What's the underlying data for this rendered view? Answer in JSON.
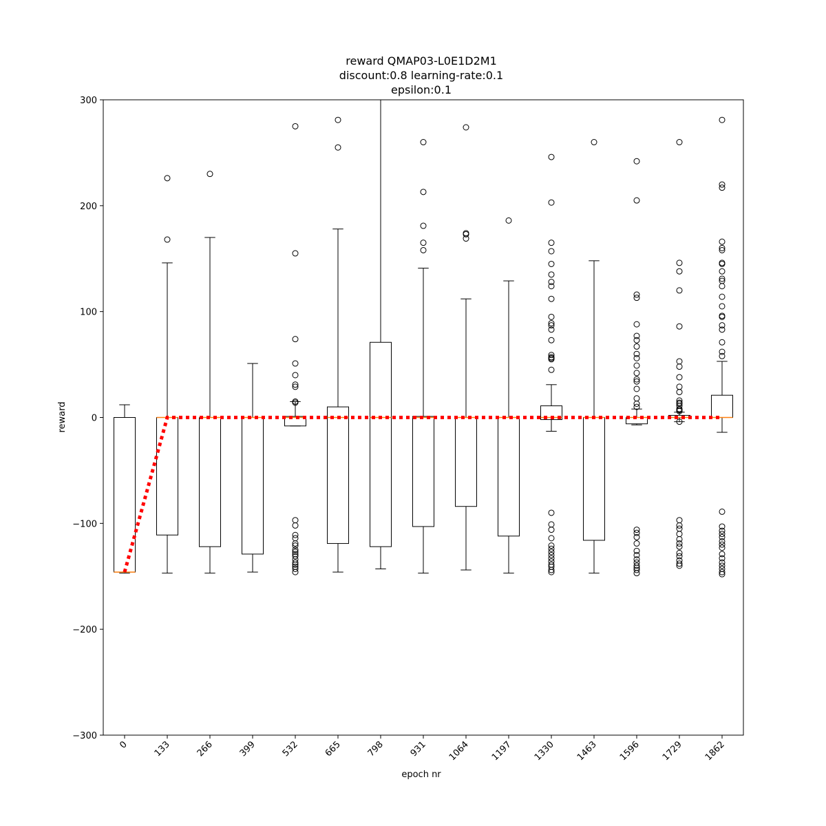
{
  "chart_data": {
    "type": "box",
    "title_lines": [
      "reward QMAP03-L0E1D2M1",
      "discount:0.8 learning-rate:0.1",
      "epsilon:0.1"
    ],
    "xlabel": "epoch nr",
    "ylabel": "reward",
    "ylim": [
      -300,
      300
    ],
    "yticks": [
      -300,
      -200,
      -100,
      0,
      100,
      200,
      300
    ],
    "categories": [
      "0",
      "133",
      "266",
      "399",
      "532",
      "665",
      "798",
      "931",
      "1064",
      "1197",
      "1330",
      "1463",
      "1596",
      "1729",
      "1862"
    ],
    "boxes": [
      {
        "q1": -146,
        "median": -146,
        "q3": 0,
        "whisker_low": -147,
        "whisker_high": 12,
        "fliers": []
      },
      {
        "q1": -111,
        "median": 0,
        "q3": 0,
        "whisker_low": -147,
        "whisker_high": 146,
        "fliers": [
          226,
          168
        ]
      },
      {
        "q1": -122,
        "median": 0,
        "q3": 0,
        "whisker_low": -147,
        "whisker_high": 170,
        "fliers": [
          230
        ]
      },
      {
        "q1": -129,
        "median": 0,
        "q3": 0,
        "whisker_low": -146,
        "whisker_high": 51,
        "fliers": []
      },
      {
        "q1": -8,
        "median": 0,
        "q3": 1,
        "whisker_low": -8,
        "whisker_high": 15,
        "fliers": [
          275,
          155,
          74,
          51,
          40,
          31,
          29,
          15,
          14,
          -97,
          -102,
          -111,
          -114,
          -119,
          -121,
          -125,
          -127,
          -129,
          -131,
          -134,
          -137,
          -139,
          -141,
          -143,
          -146
        ]
      },
      {
        "q1": -119,
        "median": 0,
        "q3": 10,
        "whisker_low": -146,
        "whisker_high": 178,
        "fliers": [
          281,
          255
        ]
      },
      {
        "q1": -122,
        "median": 0,
        "q3": 71,
        "whisker_low": -143,
        "whisker_high": 300,
        "fliers": []
      },
      {
        "q1": -103,
        "median": 0,
        "q3": 1,
        "whisker_low": -147,
        "whisker_high": 141,
        "fliers": [
          260,
          213,
          181,
          165,
          158
        ]
      },
      {
        "q1": -84,
        "median": 0,
        "q3": 0,
        "whisker_low": -144,
        "whisker_high": 112,
        "fliers": [
          274,
          174,
          173,
          169
        ]
      },
      {
        "q1": -112,
        "median": 0,
        "q3": 0,
        "whisker_low": -147,
        "whisker_high": 129,
        "fliers": [
          186
        ]
      },
      {
        "q1": -2,
        "median": 0,
        "q3": 11,
        "whisker_low": -13,
        "whisker_high": 31,
        "fliers": [
          246,
          203,
          165,
          157,
          145,
          135,
          128,
          124,
          112,
          95,
          89,
          87,
          73,
          83,
          59,
          57,
          56,
          55,
          45,
          -90,
          -101,
          -106,
          -114,
          -121,
          -124,
          -127,
          -130,
          -133,
          -136,
          -139,
          -141,
          -144,
          -146
        ]
      },
      {
        "q1": -116,
        "median": 0,
        "q3": 0,
        "whisker_low": -147,
        "whisker_high": 148,
        "fliers": [
          260
        ]
      },
      {
        "q1": -6,
        "median": 0,
        "q3": 0,
        "whisker_low": -7,
        "whisker_high": 8,
        "fliers": [
          242,
          205,
          116,
          113,
          88,
          77,
          73,
          67,
          60,
          56,
          49,
          42,
          36,
          34,
          27,
          18,
          13,
          10,
          -106,
          -109,
          -113,
          -119,
          -126,
          -130,
          -134,
          -137,
          -140,
          -142,
          -144,
          -147
        ]
      },
      {
        "q1": 0,
        "median": 0,
        "q3": 2,
        "whisker_low": -4,
        "whisker_high": 5,
        "fliers": [
          260,
          146,
          138,
          120,
          86,
          53,
          48,
          38,
          29,
          24,
          16,
          14,
          13,
          11,
          8,
          7,
          6,
          -4,
          -97,
          -102,
          -105,
          -110,
          -115,
          -119,
          -122,
          -128,
          -131,
          -135,
          -138,
          -140
        ]
      },
      {
        "q1": 0,
        "median": 0,
        "q3": 21,
        "whisker_low": -14,
        "whisker_high": 53,
        "fliers": [
          281,
          220,
          217,
          166,
          160,
          158,
          146,
          145,
          138,
          131,
          129,
          124,
          114,
          105,
          96,
          95,
          87,
          83,
          71,
          62,
          58,
          -89,
          -103,
          -107,
          -110,
          -113,
          -117,
          -120,
          -123,
          -129,
          -133,
          -137,
          -140,
          -143,
          -146,
          -148
        ]
      }
    ],
    "mean_series": {
      "style": "dotted",
      "color": "#ff0000",
      "values": [
        -146,
        0,
        0,
        0,
        0,
        0,
        0,
        0,
        0,
        0,
        0,
        0,
        0,
        0,
        0
      ]
    },
    "colors": {
      "box": "#000000",
      "median": "#ff7f0e",
      "mean": "#ff0000"
    },
    "grid": false,
    "legend": "none"
  }
}
